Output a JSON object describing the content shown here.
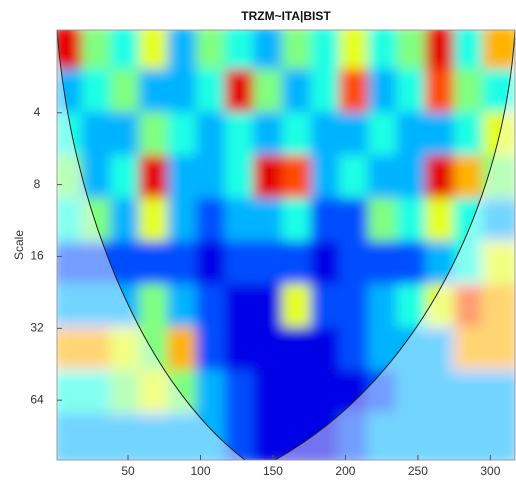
{
  "chart_data": {
    "type": "heatmap",
    "title": "TRZM~ITA|BIST",
    "ylabel": "Scale",
    "xlim": [
      1,
      317
    ],
    "ylim": [
      1.8,
      114
    ],
    "yscale": "log",
    "yreverse": true,
    "xticks": [
      50,
      100,
      150,
      200,
      250,
      300
    ],
    "yticks": [
      4,
      8,
      16,
      32,
      64
    ],
    "colormap": "jet",
    "z": [
      [
        0.9,
        0.5,
        0.4,
        0.6,
        0.3,
        0.5,
        0.4,
        0.3,
        0.5,
        0.4,
        0.6,
        0.4,
        0.5,
        0.9,
        0.4,
        0.7
      ],
      [
        0.3,
        0.4,
        0.5,
        0.3,
        0.3,
        0.4,
        0.9,
        0.5,
        0.3,
        0.4,
        0.8,
        0.3,
        0.4,
        0.8,
        0.5,
        0.4
      ],
      [
        0.4,
        0.3,
        0.3,
        0.5,
        0.4,
        0.3,
        0.4,
        0.3,
        0.4,
        0.3,
        0.3,
        0.4,
        0.3,
        0.3,
        0.4,
        0.6
      ],
      [
        0.5,
        0.3,
        0.4,
        0.9,
        0.3,
        0.3,
        0.4,
        0.9,
        0.8,
        0.3,
        0.4,
        0.3,
        0.3,
        0.9,
        0.7,
        0.5
      ],
      [
        0.4,
        0.5,
        0.3,
        0.6,
        0.3,
        0.2,
        0.3,
        0.3,
        0.4,
        0.2,
        0.2,
        0.5,
        0.4,
        0.6,
        0.4,
        0.3
      ],
      [
        0.2,
        0.2,
        0.2,
        0.2,
        0.2,
        0.1,
        0.2,
        0.2,
        0.2,
        0.1,
        0.2,
        0.2,
        0.2,
        0.3,
        0.4,
        0.6
      ],
      [
        0.3,
        0.3,
        0.3,
        0.5,
        0.3,
        0.2,
        0.1,
        0.1,
        0.6,
        0.2,
        0.2,
        0.3,
        0.4,
        0.6,
        0.8,
        0.7
      ],
      [
        0.7,
        0.7,
        0.6,
        0.5,
        0.7,
        0.2,
        0.1,
        0.1,
        0.1,
        0.1,
        0.2,
        0.3,
        0.3,
        0.3,
        0.7,
        0.7
      ],
      [
        0.4,
        0.4,
        0.5,
        0.6,
        0.5,
        0.3,
        0.2,
        0.1,
        0.1,
        0.1,
        0.1,
        0.2,
        0.3,
        0.3,
        0.3,
        0.3
      ],
      [
        0.3,
        0.3,
        0.3,
        0.3,
        0.3,
        0.3,
        0.2,
        0.1,
        0.1,
        0.1,
        0.2,
        0.3,
        0.3,
        0.3,
        0.3,
        0.3
      ]
    ]
  }
}
